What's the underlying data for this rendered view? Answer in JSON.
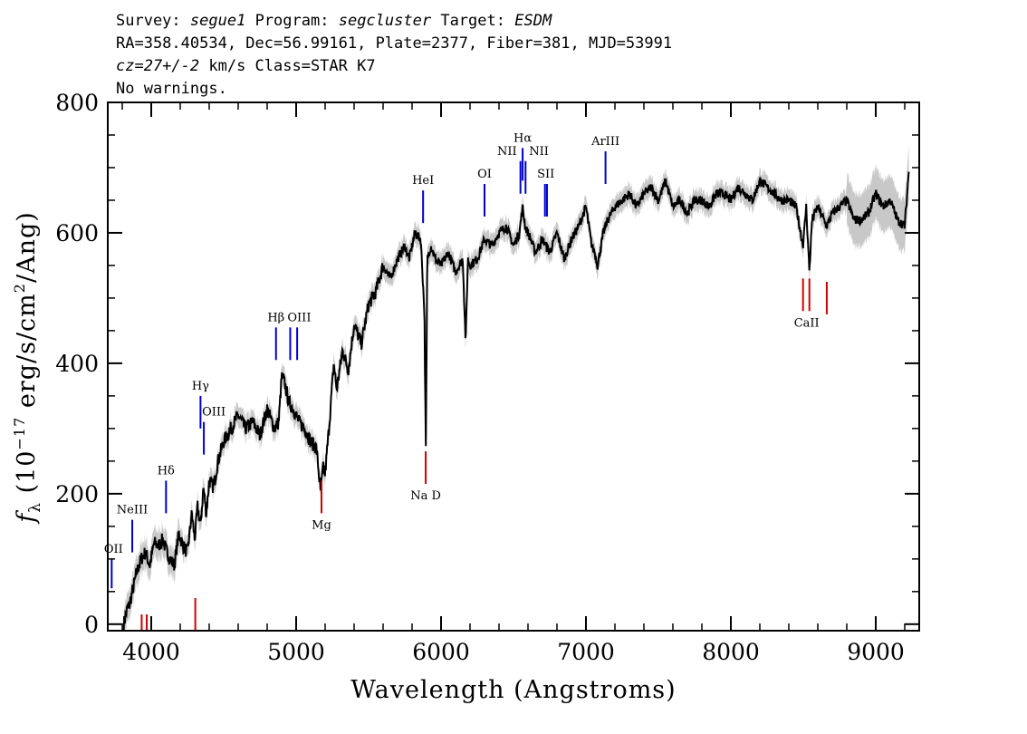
{
  "header": {
    "survey_label": "Survey:",
    "survey": "segue1",
    "program_label": "Program:",
    "program": "segcluster",
    "target_label": "Target:",
    "target": "ESDM",
    "line2": "RA=358.40534, Dec=56.99161, Plate=2377, Fiber=381, MJD=53991",
    "cz": "cz=27+/-2",
    "cz_rest": " km/s Class=STAR K7",
    "warnings": "No warnings."
  },
  "colors": {
    "flux": "#000000",
    "error": "#c8c8c8",
    "emission": "#0000d0",
    "absorption": "#d00000"
  },
  "chart_data": {
    "type": "line",
    "title": "",
    "xlabel": "Wavelength (Angstroms)",
    "ylabel": "f_λ (10^-17 erg/s/cm^2/Ang)",
    "xlim": [
      3700,
      9300
    ],
    "ylim": [
      -10,
      800
    ],
    "x_ticks": [
      4000,
      5000,
      6000,
      7000,
      8000,
      9000
    ],
    "y_ticks": [
      0,
      200,
      400,
      600,
      800
    ],
    "x_tick_labels": [
      "4000",
      "5000",
      "6000",
      "7000",
      "8000",
      "9000"
    ],
    "y_tick_labels": [
      "0",
      "200",
      "400",
      "600",
      "800"
    ],
    "series": [
      {
        "name": "flux",
        "x": [
          3810,
          3830,
          3850,
          3870,
          3900,
          3930,
          3960,
          3990,
          4020,
          4050,
          4080,
          4100,
          4130,
          4160,
          4190,
          4220,
          4250,
          4280,
          4300,
          4320,
          4340,
          4360,
          4380,
          4400,
          4430,
          4460,
          4500,
          4550,
          4600,
          4650,
          4700,
          4750,
          4800,
          4850,
          4880,
          4900,
          4920,
          4950,
          4980,
          5020,
          5060,
          5100,
          5140,
          5170,
          5185,
          5200,
          5230,
          5260,
          5280,
          5320,
          5360,
          5400,
          5450,
          5500,
          5550,
          5600,
          5650,
          5700,
          5750,
          5780,
          5820,
          5860,
          5885,
          5895,
          5905,
          5930,
          5960,
          6000,
          6050,
          6100,
          6150,
          6170,
          6185,
          6200,
          6250,
          6300,
          6350,
          6400,
          6450,
          6500,
          6540,
          6563,
          6580,
          6620,
          6650,
          6700,
          6750,
          6800,
          6850,
          6900,
          6950,
          7000,
          7040,
          7060,
          7080,
          7120,
          7150,
          7200,
          7250,
          7300,
          7350,
          7400,
          7450,
          7500,
          7550,
          7600,
          7650,
          7700,
          7750,
          7800,
          7850,
          7900,
          7950,
          8000,
          8050,
          8100,
          8150,
          8200,
          8250,
          8300,
          8350,
          8400,
          8450,
          8498,
          8520,
          8542,
          8560,
          8600,
          8662,
          8700,
          8750,
          8800,
          8850,
          8900,
          8950,
          9000,
          9050,
          9100,
          9150,
          9200,
          9230
        ],
        "values": [
          0,
          20,
          30,
          50,
          80,
          100,
          110,
          90,
          125,
          120,
          130,
          115,
          100,
          90,
          140,
          120,
          110,
          170,
          130,
          180,
          150,
          210,
          170,
          220,
          210,
          250,
          280,
          300,
          320,
          300,
          310,
          290,
          330,
          300,
          310,
          380,
          370,
          340,
          330,
          310,
          300,
          280,
          270,
          200,
          240,
          230,
          310,
          400,
          360,
          420,
          390,
          460,
          430,
          490,
          510,
          550,
          530,
          560,
          580,
          560,
          600,
          590,
          480,
          270,
          560,
          580,
          560,
          550,
          570,
          540,
          560,
          430,
          560,
          550,
          560,
          590,
          580,
          600,
          610,
          580,
          600,
          640,
          610,
          590,
          570,
          590,
          570,
          600,
          560,
          590,
          610,
          640,
          580,
          570,
          550,
          600,
          620,
          640,
          650,
          660,
          640,
          660,
          670,
          650,
          680,
          640,
          650,
          630,
          650,
          650,
          640,
          660,
          660,
          650,
          670,
          660,
          650,
          680,
          670,
          660,
          650,
          650,
          640,
          580,
          640,
          540,
          620,
          640,
          610,
          630,
          640,
          650,
          620,
          620,
          630,
          660,
          640,
          650,
          620,
          610,
          700
        ]
      },
      {
        "name": "error",
        "type": "band",
        "description": "error envelope around flux"
      }
    ],
    "spectral_lines": [
      {
        "label": "OII",
        "wave": 3727,
        "kind": "emission",
        "y": [
          55,
          100
        ]
      },
      {
        "label": "NeIII",
        "wave": 3869,
        "kind": "emission",
        "y": [
          110,
          160
        ]
      },
      {
        "label": "Hδ",
        "wave": 4102,
        "kind": "emission",
        "y": [
          170,
          220
        ]
      },
      {
        "label": "Hγ",
        "wave": 4340,
        "kind": "emission",
        "y": [
          300,
          350
        ]
      },
      {
        "label": "OIII",
        "wave": 4363,
        "kind": "emission",
        "y": [
          260,
          310
        ]
      },
      {
        "label": "Hβ",
        "wave": 4861,
        "kind": "emission",
        "y": [
          405,
          455
        ]
      },
      {
        "label": "OIII",
        "wave": 4959,
        "kind": "emission",
        "y": [
          405,
          455
        ]
      },
      {
        "label": "",
        "wave": 5007,
        "kind": "emission",
        "y": [
          405,
          455
        ]
      },
      {
        "label": "HeI",
        "wave": 5876,
        "kind": "emission",
        "y": [
          615,
          665
        ]
      },
      {
        "label": "OI",
        "wave": 6300,
        "kind": "emission",
        "y": [
          625,
          675
        ]
      },
      {
        "label": "NII",
        "wave": 6548,
        "kind": "emission",
        "y": [
          660,
          710
        ]
      },
      {
        "label": "Hα",
        "wave": 6563,
        "kind": "emission",
        "y": [
          680,
          730
        ]
      },
      {
        "label": "NII",
        "wave": 6583,
        "kind": "emission",
        "y": [
          660,
          710
        ]
      },
      {
        "label": "SII",
        "wave": 6717,
        "kind": "emission",
        "y": [
          625,
          675
        ]
      },
      {
        "label": "",
        "wave": 6731,
        "kind": "emission",
        "y": [
          625,
          675
        ]
      },
      {
        "label": "ArIII",
        "wave": 7135,
        "kind": "emission",
        "y": [
          675,
          725
        ]
      },
      {
        "label": "",
        "wave": 3934,
        "kind": "absorption",
        "y": [
          -10,
          15
        ]
      },
      {
        "label": "",
        "wave": 3969,
        "kind": "absorption",
        "y": [
          -10,
          15
        ]
      },
      {
        "label": "",
        "wave": 4304,
        "kind": "absorption",
        "y": [
          -10,
          40
        ]
      },
      {
        "label": "Mg",
        "wave": 5175,
        "kind": "absorption",
        "y": [
          170,
          220
        ]
      },
      {
        "label": "Na D",
        "wave": 5894,
        "kind": "absorption",
        "y": [
          215,
          265
        ]
      },
      {
        "label": "CaII",
        "wave": 8498,
        "kind": "absorption",
        "y": [
          480,
          530
        ]
      },
      {
        "label": "",
        "wave": 8542,
        "kind": "absorption",
        "y": [
          480,
          530
        ]
      },
      {
        "label": "",
        "wave": 8662,
        "kind": "absorption",
        "y": [
          475,
          525
        ]
      }
    ]
  }
}
